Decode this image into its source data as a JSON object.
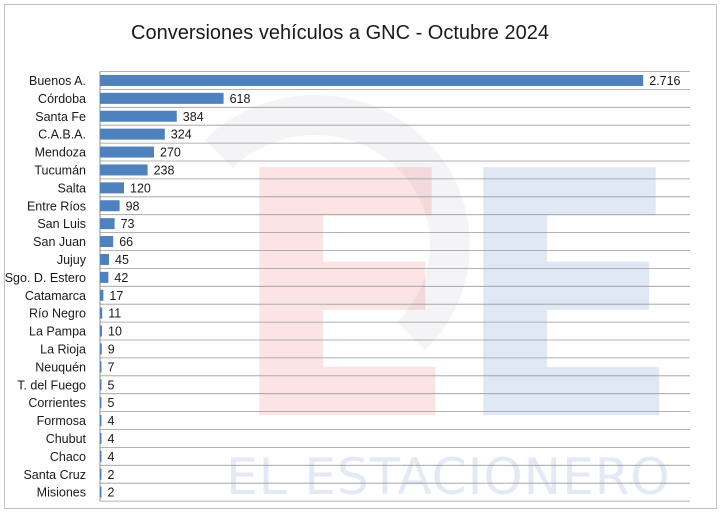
{
  "chart_data": {
    "type": "bar",
    "orientation": "horizontal",
    "title": "Conversiones vehículos a GNC - Octubre 2024",
    "categories": [
      "Buenos A.",
      "Córdoba",
      "Santa Fe",
      "C.A.B.A.",
      "Mendoza",
      "Tucumán",
      "Salta",
      "Entre Ríos",
      "San Luis",
      "San Juan",
      "Jujuy",
      "Sgo. D. Estero",
      "Catamarca",
      "Río Negro",
      "La Pampa",
      "La Rioja",
      "Neuquén",
      "T. del Fuego",
      "Corrientes",
      "Formosa",
      "Chubut",
      "Chaco",
      "Santa Cruz",
      "Misiones"
    ],
    "values": [
      2716,
      618,
      384,
      324,
      270,
      238,
      120,
      98,
      73,
      66,
      45,
      42,
      17,
      11,
      10,
      9,
      7,
      5,
      5,
      4,
      4,
      4,
      2,
      2
    ],
    "value_labels": [
      "2.716",
      "618",
      "384",
      "324",
      "270",
      "238",
      "120",
      "98",
      "73",
      "66",
      "45",
      "42",
      "17",
      "11",
      "10",
      "9",
      "7",
      "5",
      "5",
      "4",
      "4",
      "4",
      "2",
      "2"
    ],
    "xlim": [
      0,
      2950
    ],
    "grid": true,
    "legend": "none",
    "bar_color": "#4f81bd",
    "grid_color": "#9a9a9a"
  },
  "watermark": {
    "letters": "EE",
    "text": "EL ESTACIONERO",
    "colors": {
      "red": "#eb5a5a",
      "blue": "#466ebe"
    }
  }
}
